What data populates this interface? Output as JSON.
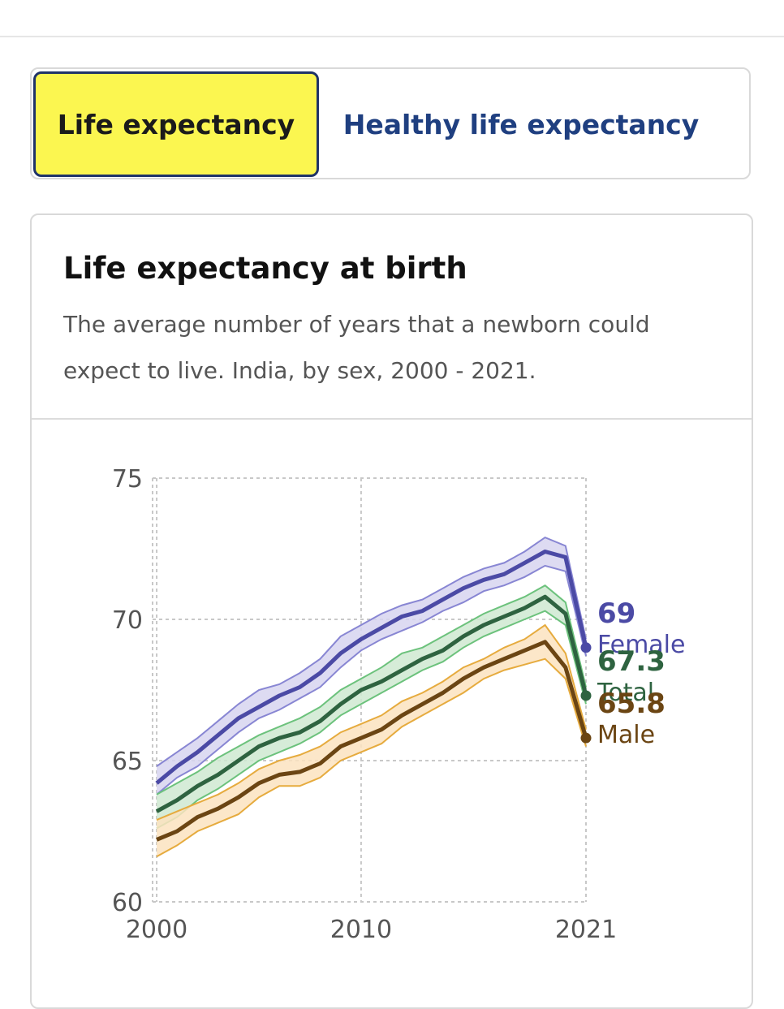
{
  "tabs": {
    "life_expectancy": "Life expectancy",
    "healthy_life_expectancy": "Healthy life expectancy"
  },
  "card": {
    "title": "Life expectancy at birth",
    "subtitle": "The average number of years that a newborn could expect to live. India, by sex, 2000 - 2021."
  },
  "colors": {
    "female": "#4b4aa5",
    "total": "#2e6340",
    "male": "#6b4513",
    "female_band": "#d7d5f0",
    "total_band": "#cfe9d1",
    "male_band": "#fbe3bf",
    "active_tab_bg": "#fbf650",
    "tab_text": "#1f3f80"
  },
  "chart_data": {
    "type": "line",
    "title": "Life expectancy at birth",
    "xlabel": "",
    "ylabel": "",
    "ylim": [
      60,
      75
    ],
    "xlim": [
      1999.8,
      2021
    ],
    "y_ticks": [
      "60",
      "65",
      "70",
      "75"
    ],
    "x_ticks": [
      "2000",
      "2010",
      "2021"
    ],
    "x_tick_values": [
      2000,
      2010,
      2021
    ],
    "grid": true,
    "x": [
      2000,
      2001,
      2002,
      2003,
      2004,
      2005,
      2006,
      2007,
      2008,
      2009,
      2010,
      2011,
      2012,
      2013,
      2014,
      2015,
      2016,
      2017,
      2018,
      2019,
      2020,
      2021
    ],
    "series": [
      {
        "name": "Female",
        "end_label": "69",
        "values": [
          64.2,
          64.8,
          65.3,
          65.9,
          66.5,
          66.9,
          67.3,
          67.6,
          68.1,
          68.8,
          69.3,
          69.7,
          70.1,
          70.3,
          70.7,
          71.1,
          71.4,
          71.6,
          72.0,
          72.4,
          72.2,
          69.0
        ],
        "lower": [
          63.8,
          64.4,
          64.8,
          65.4,
          66.0,
          66.5,
          66.8,
          67.2,
          67.6,
          68.3,
          68.9,
          69.3,
          69.6,
          69.9,
          70.3,
          70.6,
          71.0,
          71.2,
          71.5,
          71.9,
          71.7,
          68.7
        ],
        "upper": [
          64.8,
          65.3,
          65.8,
          66.4,
          67.0,
          67.5,
          67.7,
          68.1,
          68.6,
          69.4,
          69.8,
          70.2,
          70.5,
          70.7,
          71.1,
          71.5,
          71.8,
          72.0,
          72.4,
          72.9,
          72.6,
          69.3
        ]
      },
      {
        "name": "Total",
        "end_label": "67.3",
        "values": [
          63.2,
          63.6,
          64.1,
          64.5,
          65.0,
          65.5,
          65.8,
          66.0,
          66.4,
          67.0,
          67.5,
          67.8,
          68.2,
          68.6,
          68.9,
          69.4,
          69.8,
          70.1,
          70.4,
          70.8,
          70.2,
          67.3
        ],
        "lower": [
          62.6,
          63.0,
          63.6,
          64.0,
          64.5,
          65.0,
          65.3,
          65.6,
          66.0,
          66.6,
          67.0,
          67.4,
          67.8,
          68.2,
          68.5,
          69.0,
          69.4,
          69.7,
          70.0,
          70.3,
          69.8,
          67.0
        ],
        "upper": [
          63.8,
          64.2,
          64.6,
          65.1,
          65.5,
          65.9,
          66.2,
          66.5,
          66.9,
          67.5,
          67.9,
          68.3,
          68.8,
          69.0,
          69.4,
          69.8,
          70.2,
          70.5,
          70.8,
          71.2,
          70.6,
          67.6
        ]
      },
      {
        "name": "Male",
        "end_label": "65.8",
        "values": [
          62.2,
          62.5,
          63.0,
          63.3,
          63.7,
          64.2,
          64.5,
          64.6,
          64.9,
          65.5,
          65.8,
          66.1,
          66.6,
          67.0,
          67.4,
          67.9,
          68.3,
          68.6,
          68.9,
          69.2,
          68.3,
          65.8
        ],
        "lower": [
          61.6,
          62.0,
          62.5,
          62.8,
          63.1,
          63.7,
          64.1,
          64.1,
          64.4,
          65.0,
          65.3,
          65.6,
          66.2,
          66.6,
          67.0,
          67.4,
          67.9,
          68.2,
          68.4,
          68.6,
          67.9,
          65.5
        ],
        "upper": [
          62.9,
          63.2,
          63.5,
          63.8,
          64.2,
          64.7,
          65.0,
          65.2,
          65.5,
          66.0,
          66.3,
          66.6,
          67.1,
          67.4,
          67.8,
          68.3,
          68.6,
          69.0,
          69.3,
          69.8,
          68.8,
          66.1
        ]
      }
    ]
  }
}
